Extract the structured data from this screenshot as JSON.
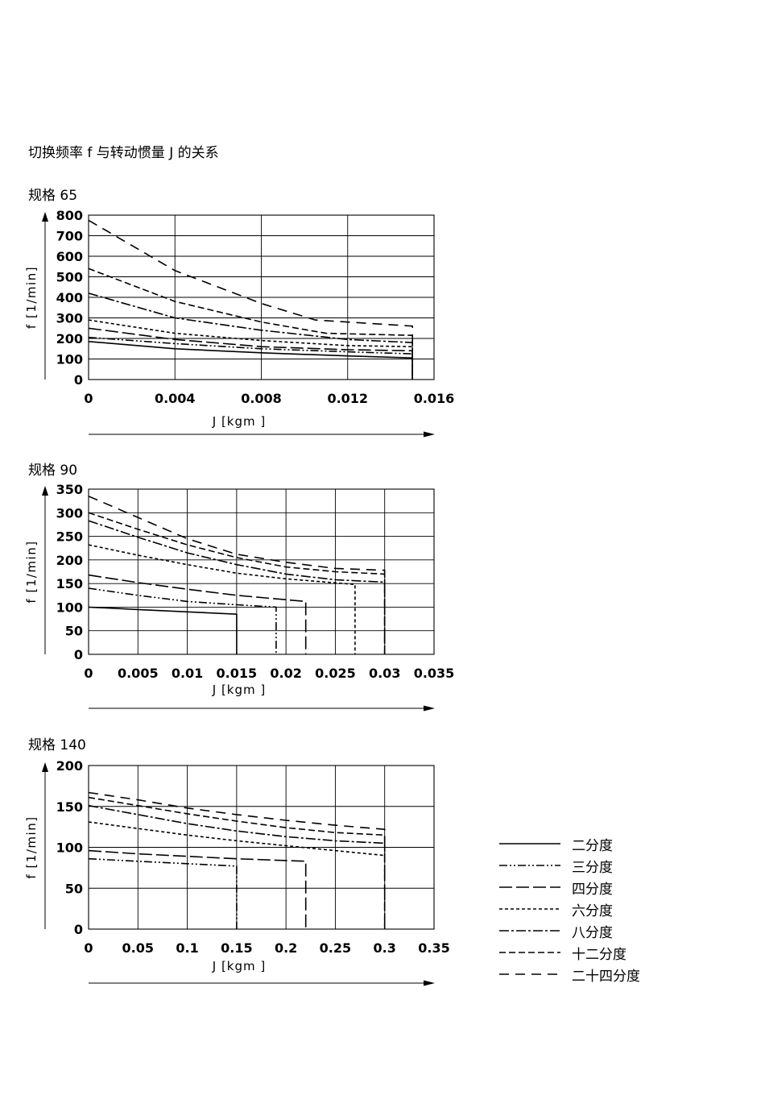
{
  "page_title": "切换频率 f 与转动惯量 J 的关系",
  "legend": [
    {
      "label": "二分度",
      "dash": "solid"
    },
    {
      "label": "三分度",
      "dash": "dashdotdot"
    },
    {
      "label": "四分度",
      "dash": "longdash"
    },
    {
      "label": "六分度",
      "dash": "dotted"
    },
    {
      "label": "八分度",
      "dash": "dashdot"
    },
    {
      "label": "十二分度",
      "dash": "mediumdash"
    },
    {
      "label": "二十四分度",
      "dash": "widedash"
    }
  ],
  "chart_data": [
    {
      "type": "line",
      "title": "规格 65",
      "xlabel": "J [kgm ]",
      "ylabel": "f [1/min]",
      "xlim": [
        0,
        0.016
      ],
      "ylim": [
        0,
        800
      ],
      "x_ticks": [
        0,
        0.004,
        0.008,
        0.012,
        0.016
      ],
      "x_tick_labels": [
        "0",
        "0.004",
        "0.008",
        "0.012",
        "0.016"
      ],
      "y_ticks": [
        0,
        100,
        200,
        300,
        400,
        500,
        600,
        700,
        800
      ],
      "y_tick_labels": [
        "0",
        "100",
        "200",
        "300",
        "400",
        "500",
        "600",
        "700",
        "800"
      ],
      "grid": true,
      "series": [
        {
          "legend_index": 0,
          "x": [
            0,
            0.004,
            0.008,
            0.012,
            0.015,
            0.015
          ],
          "y": [
            185,
            150,
            130,
            115,
            105,
            0
          ]
        },
        {
          "legend_index": 1,
          "x": [
            0,
            0.004,
            0.008,
            0.012,
            0.015,
            0.015
          ],
          "y": [
            205,
            175,
            150,
            135,
            125,
            0
          ]
        },
        {
          "legend_index": 2,
          "x": [
            0,
            0.004,
            0.008,
            0.012,
            0.015,
            0.015
          ],
          "y": [
            250,
            195,
            160,
            145,
            140,
            0
          ]
        },
        {
          "legend_index": 3,
          "x": [
            0,
            0.004,
            0.008,
            0.012,
            0.015,
            0.015
          ],
          "y": [
            290,
            225,
            190,
            165,
            160,
            0
          ]
        },
        {
          "legend_index": 4,
          "x": [
            0,
            0.004,
            0.008,
            0.012,
            0.015,
            0.015
          ],
          "y": [
            420,
            300,
            240,
            195,
            180,
            0
          ]
        },
        {
          "legend_index": 5,
          "x": [
            0,
            0.004,
            0.008,
            0.011,
            0.015,
            0.015
          ],
          "y": [
            540,
            380,
            280,
            225,
            215,
            0
          ]
        },
        {
          "legend_index": 6,
          "x": [
            0,
            0.004,
            0.008,
            0.0105,
            0.015,
            0.015
          ],
          "y": [
            775,
            530,
            370,
            290,
            260,
            0
          ]
        }
      ]
    },
    {
      "type": "line",
      "title": "规格 90",
      "xlabel": "J [kgm ]",
      "ylabel": "f [1/min]",
      "xlim": [
        0,
        0.035
      ],
      "ylim": [
        0,
        350
      ],
      "x_ticks": [
        0,
        0.005,
        0.01,
        0.015,
        0.02,
        0.025,
        0.03,
        0.035
      ],
      "x_tick_labels": [
        "0",
        "0.005",
        "0.01",
        "0.015",
        "0.02",
        "0.025",
        "0.03",
        "0.035"
      ],
      "y_ticks": [
        0,
        50,
        100,
        150,
        200,
        250,
        300,
        350
      ],
      "y_tick_labels": [
        "0",
        "50",
        "100",
        "150",
        "200",
        "250",
        "300",
        "350"
      ],
      "grid": true,
      "series": [
        {
          "legend_index": 0,
          "x": [
            0,
            0.005,
            0.01,
            0.015,
            0.015
          ],
          "y": [
            100,
            95,
            90,
            85,
            0
          ]
        },
        {
          "legend_index": 1,
          "x": [
            0,
            0.005,
            0.01,
            0.015,
            0.019,
            0.019
          ],
          "y": [
            140,
            125,
            112,
            105,
            100,
            0
          ]
        },
        {
          "legend_index": 2,
          "x": [
            0,
            0.005,
            0.01,
            0.015,
            0.022,
            0.022
          ],
          "y": [
            168,
            152,
            138,
            125,
            112,
            0
          ]
        },
        {
          "legend_index": 3,
          "x": [
            0,
            0.005,
            0.01,
            0.015,
            0.02,
            0.027,
            0.027
          ],
          "y": [
            232,
            210,
            190,
            172,
            160,
            148,
            0
          ]
        },
        {
          "legend_index": 4,
          "x": [
            0,
            0.005,
            0.01,
            0.015,
            0.02,
            0.025,
            0.03,
            0.03
          ],
          "y": [
            283,
            248,
            215,
            190,
            170,
            158,
            153,
            0
          ]
        },
        {
          "legend_index": 5,
          "x": [
            0,
            0.005,
            0.01,
            0.015,
            0.02,
            0.025,
            0.03,
            0.03
          ],
          "y": [
            300,
            265,
            232,
            205,
            185,
            175,
            170,
            0
          ]
        },
        {
          "legend_index": 6,
          "x": [
            0,
            0.005,
            0.01,
            0.015,
            0.02,
            0.025,
            0.03,
            0.03
          ],
          "y": [
            335,
            290,
            245,
            212,
            195,
            182,
            178,
            0
          ]
        }
      ]
    },
    {
      "type": "line",
      "title": "规格 140",
      "xlabel": "J [kgm ]",
      "ylabel": "f [1/min]",
      "xlim": [
        0,
        0.35
      ],
      "ylim": [
        0,
        200
      ],
      "x_ticks": [
        0,
        0.05,
        0.1,
        0.15,
        0.2,
        0.25,
        0.3,
        0.35
      ],
      "x_tick_labels": [
        "0",
        "0.05",
        "0.1",
        "0.15",
        "0.2",
        "0.25",
        "0.3",
        "0.35"
      ],
      "y_ticks": [
        0,
        50,
        100,
        150,
        200
      ],
      "y_tick_labels": [
        "0",
        "50",
        "100",
        "150",
        "200"
      ],
      "grid": true,
      "series": [
        {
          "legend_index": 2,
          "x": [
            0,
            0.05,
            0.1,
            0.15,
            0.22,
            0.22
          ],
          "y": [
            96,
            92,
            89,
            86,
            83,
            0
          ]
        },
        {
          "legend_index": 1,
          "x": [
            0,
            0.05,
            0.1,
            0.15,
            0.15
          ],
          "y": [
            86,
            83,
            80,
            77,
            0
          ]
        },
        {
          "legend_index": 3,
          "x": [
            0,
            0.05,
            0.1,
            0.15,
            0.2,
            0.25,
            0.3
          ],
          "y": [
            131,
            123,
            115,
            108,
            102,
            96,
            90
          ]
        },
        {
          "legend_index": 4,
          "x": [
            0,
            0.05,
            0.1,
            0.15,
            0.2,
            0.25,
            0.3
          ],
          "y": [
            151,
            140,
            129,
            120,
            113,
            108,
            105
          ]
        },
        {
          "legend_index": 5,
          "x": [
            0,
            0.05,
            0.1,
            0.15,
            0.2,
            0.25,
            0.3,
            0.3
          ],
          "y": [
            161,
            151,
            141,
            132,
            124,
            118,
            115,
            0
          ]
        },
        {
          "legend_index": 6,
          "x": [
            0,
            0.05,
            0.1,
            0.15,
            0.2,
            0.25,
            0.3,
            0.3
          ],
          "y": [
            167,
            158,
            148,
            140,
            133,
            127,
            122,
            0
          ]
        }
      ]
    }
  ]
}
